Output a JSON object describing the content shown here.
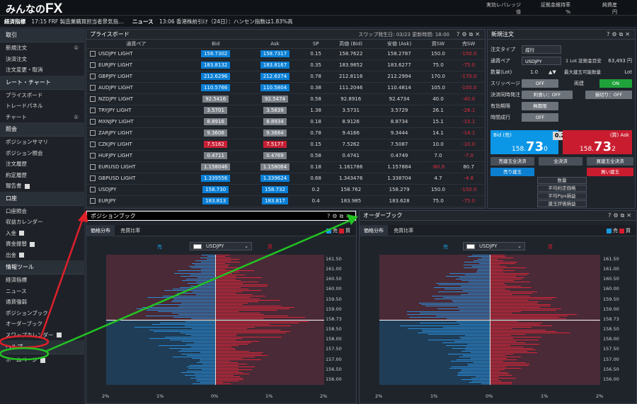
{
  "app": {
    "logo_a": "みんなの",
    "logo_b": "FX"
  },
  "account": [
    {
      "label": "実効レバレッジ",
      "unit": "倍"
    },
    {
      "label": "証拠金維持率",
      "unit": "%"
    },
    {
      "label": "純資産",
      "unit": "円"
    }
  ],
  "news": {
    "tag1": "経済指標",
    "item1": "17:15 FRF 製造業購買担当者景気指…",
    "tag2": "ニュース",
    "item2": "13:06 香港株前引け（24日）：ハンセン指数は1.83%高"
  },
  "sidebar": {
    "sections": [
      {
        "title": "取引",
        "items": [
          {
            "label": "新規注文",
            "badge": "①"
          },
          {
            "label": "決済注文"
          },
          {
            "label": "注文変更・取消"
          }
        ]
      },
      {
        "title": "レート・チャート",
        "items": [
          {
            "label": "プライスボード"
          },
          {
            "label": "トレードパネル"
          },
          {
            "label": "チャート",
            "badge": "①"
          }
        ]
      },
      {
        "title": "照会",
        "items": [
          {
            "label": "ポジションサマリ"
          },
          {
            "label": "ポジション照会"
          },
          {
            "label": "注文履歴"
          },
          {
            "label": "約定履歴"
          },
          {
            "label": "報告書",
            "ext": true
          }
        ]
      },
      {
        "title": "口座",
        "items": [
          {
            "label": "口座照会"
          },
          {
            "label": "収益カレンダー"
          },
          {
            "label": "入金",
            "ext": true
          },
          {
            "label": "資金振替",
            "ext": true
          },
          {
            "label": "出金",
            "ext": true
          }
        ]
      },
      {
        "title": "情報ツール",
        "items": [
          {
            "label": "経済指標"
          },
          {
            "label": "ニュース"
          },
          {
            "label": "通貨強弱"
          },
          {
            "label": "ポジションブック"
          },
          {
            "label": "オーダーブック"
          },
          {
            "label": "スワップカレンダー",
            "ext": true
          }
        ]
      },
      {
        "title": "ヘルプ",
        "items": [
          {
            "label": "ホームページ",
            "ext": true
          }
        ]
      }
    ]
  },
  "priceboard": {
    "title": "プライスボード",
    "info": "スワップ発生日: 03/23 更新時間: 18:00",
    "headers": [
      "通貨ペア",
      "Bid",
      "Ask",
      "SP",
      "高値 (Bid)",
      "安値 (Ask)",
      "買SW",
      "売SW"
    ],
    "rows": [
      [
        "USDJPY LIGHT",
        "158.7302",
        "158.7317",
        "0.15",
        "158.7622",
        "158.2787",
        "150.0",
        "-150.0",
        "b",
        "b"
      ],
      [
        "EURJPY LIGHT",
        "183.8132",
        "183.8167",
        "0.35",
        "183.9852",
        "183.6277",
        "75.0",
        "-75.0",
        "b",
        "b"
      ],
      [
        "GBPJPY LIGHT",
        "212.6296",
        "212.6374",
        "0.78",
        "212.8116",
        "212.2994",
        "170.0",
        "-170.0",
        "b",
        "b"
      ],
      [
        "AUDJPY LIGHT",
        "110.5766",
        "110.5804",
        "0.38",
        "111.2046",
        "110.4814",
        "105.0",
        "-105.0",
        "b",
        "b"
      ],
      [
        "NZDJPY LIGHT",
        "92.5416",
        "92.5474",
        "0.58",
        "92.8916",
        "92.4734",
        "40.0",
        "-40.0",
        "g",
        "g"
      ],
      [
        "TRYJPY LIGHT",
        "3.5701",
        "3.5839",
        "1.38",
        "3.5731",
        "3.5729",
        "26.1",
        "-26.1",
        "g",
        "g"
      ],
      [
        "MXNJPY LIGHT",
        "8.8916",
        "8.8934",
        "0.18",
        "8.9126",
        "8.8734",
        "15.1",
        "-15.1",
        "g",
        "g"
      ],
      [
        "ZARJPY LIGHT",
        "9.3606",
        "9.3684",
        "0.78",
        "9.4166",
        "9.3444",
        "14.1",
        "-14.1",
        "g",
        "g"
      ],
      [
        "CZKJPY LIGHT",
        "7.5162",
        "7.5177",
        "0.15",
        "7.5262",
        "7.5087",
        "10.0",
        "-10.0",
        "r",
        "r"
      ],
      [
        "HUFJPY LIGHT",
        "0.4711",
        "0.4769",
        "0.58",
        "0.4741",
        "0.4749",
        "7.0",
        "-7.0",
        "g",
        "g"
      ],
      [
        "EURUSD LIGHT",
        "1.158046",
        "1.158064",
        "0.18",
        "1.161786",
        "1.157884",
        "-80.9",
        "80.7",
        "g",
        "g"
      ],
      [
        "GBPUSD LIGHT",
        "1.339556",
        "1.339624",
        "0.68",
        "1.343476",
        "1.338704",
        "4.7",
        "-4.8",
        "b",
        "b"
      ],
      [
        "USDJPY",
        "158.730",
        "158.732",
        "0.2",
        "158.762",
        "158.279",
        "150.0",
        "-150.0",
        "b",
        "b"
      ],
      [
        "EURJPY",
        "183.813",
        "183.817",
        "0.4",
        "183.985",
        "183.628",
        "75.0",
        "-75.0",
        "b",
        "b"
      ]
    ]
  },
  "order": {
    "title": "新規注文",
    "type_label": "注文タイプ",
    "type_value": "成行",
    "pair_label": "通貨ペア",
    "pair_value": "USDJPY",
    "lot_info": "1 Lot 証拠金目安",
    "lot_margin": "63,493 円",
    "qty_label": "数量(Lot)",
    "qty_value": "1.0",
    "max_label": "最大建玉可能数量",
    "max_unit": "Lot",
    "slip_label": "スリッページ",
    "slip_off": "OFF",
    "slip_mid": "両建",
    "slip_on": "ON",
    "close_label": "決済同時発注",
    "close_a": "利食い：OFF",
    "close_b": "損切り：OFF",
    "exp_label": "有効期限",
    "exp_value": "無期限",
    "time_label": "時間成行",
    "time_value": "OFF",
    "bid_label": "Bid (売)",
    "bid_a": "158.",
    "bid_b": "73",
    "bid_c": "0",
    "spread": "0.2",
    "ask_label": "(買) Ask",
    "ask_a": "158.",
    "ask_b": "73",
    "ask_c": "2",
    "btns": [
      "売建玉全決済",
      "全決済",
      "買建玉全決済"
    ],
    "sell": "売り建玉",
    "buy": "買い建玉",
    "stats": [
      "数量",
      "平均約定価格",
      "平均Pips損益",
      "建玉評価損益"
    ]
  },
  "posbook": {
    "title": "ポジションブック",
    "tab1": "価格分布",
    "tab2": "売買比率",
    "legend_sell": "売",
    "legend_buy": "買",
    "pair": "USDJPY",
    "left_label": "売",
    "right_label": "買"
  },
  "orderbook": {
    "title": "オーダーブック",
    "tab1": "価格分布",
    "tab2": "売買比率",
    "legend_sell": "売",
    "legend_buy": "買",
    "pair": "USDJPY",
    "left_label": "売",
    "right_label": "買"
  },
  "book_axis": {
    "y_ticks": [
      "161.50",
      "161.00",
      "160.50",
      "160.00",
      "159.50",
      "159.00",
      "158.73",
      "158.50",
      "158.00",
      "157.50",
      "157.00",
      "156.50",
      "156.00"
    ],
    "x_ticks": [
      "2%",
      "1%",
      "0%",
      "1%",
      "2%"
    ]
  },
  "colors": {
    "bid": "#0a7fd6",
    "ask": "#c71f33",
    "highlight_red": "#e0202a",
    "highlight_green": "#22c322"
  }
}
